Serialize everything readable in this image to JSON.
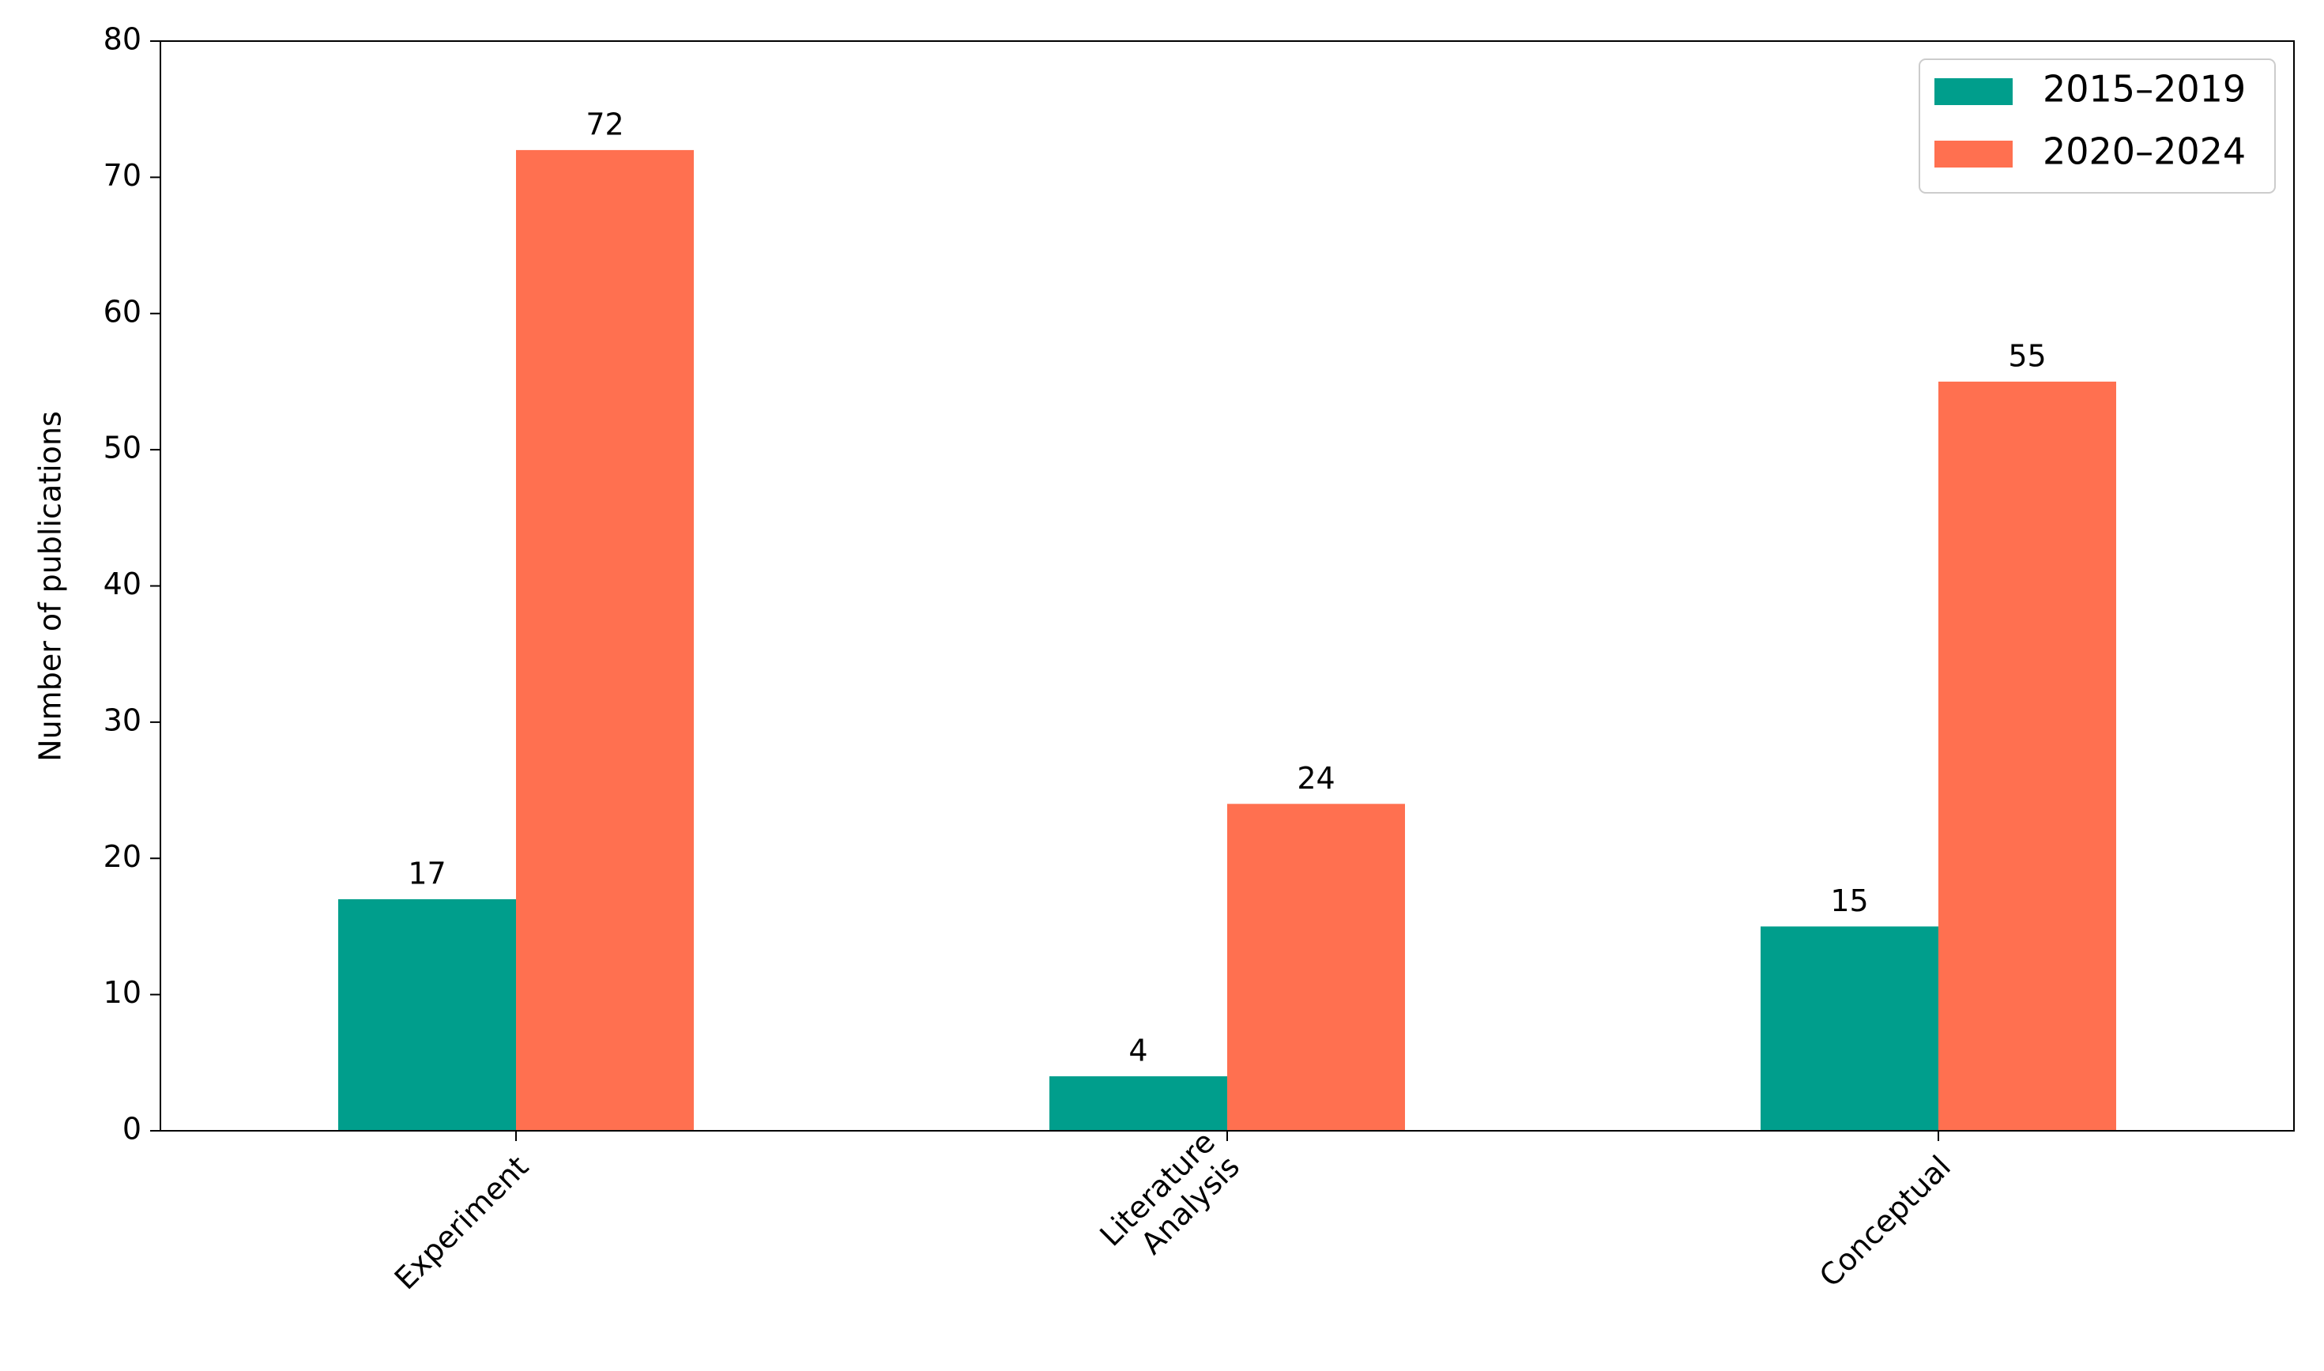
{
  "chart_data": {
    "type": "bar",
    "categories": [
      "Experiment",
      "Literature\nAnalysis",
      "Conceptual"
    ],
    "series": [
      {
        "name": "2015–2019",
        "color": "#009e8c",
        "values": [
          17,
          4,
          15
        ]
      },
      {
        "name": "2020–2024",
        "color": "#ff7050",
        "values": [
          72,
          24,
          55
        ]
      }
    ],
    "ylabel": "Number of publications",
    "ylim": [
      0,
      80
    ],
    "yticks": [
      0,
      10,
      20,
      30,
      40,
      50,
      60,
      70,
      80
    ],
    "grid": false,
    "legend": "upper right",
    "data_labels": true
  }
}
